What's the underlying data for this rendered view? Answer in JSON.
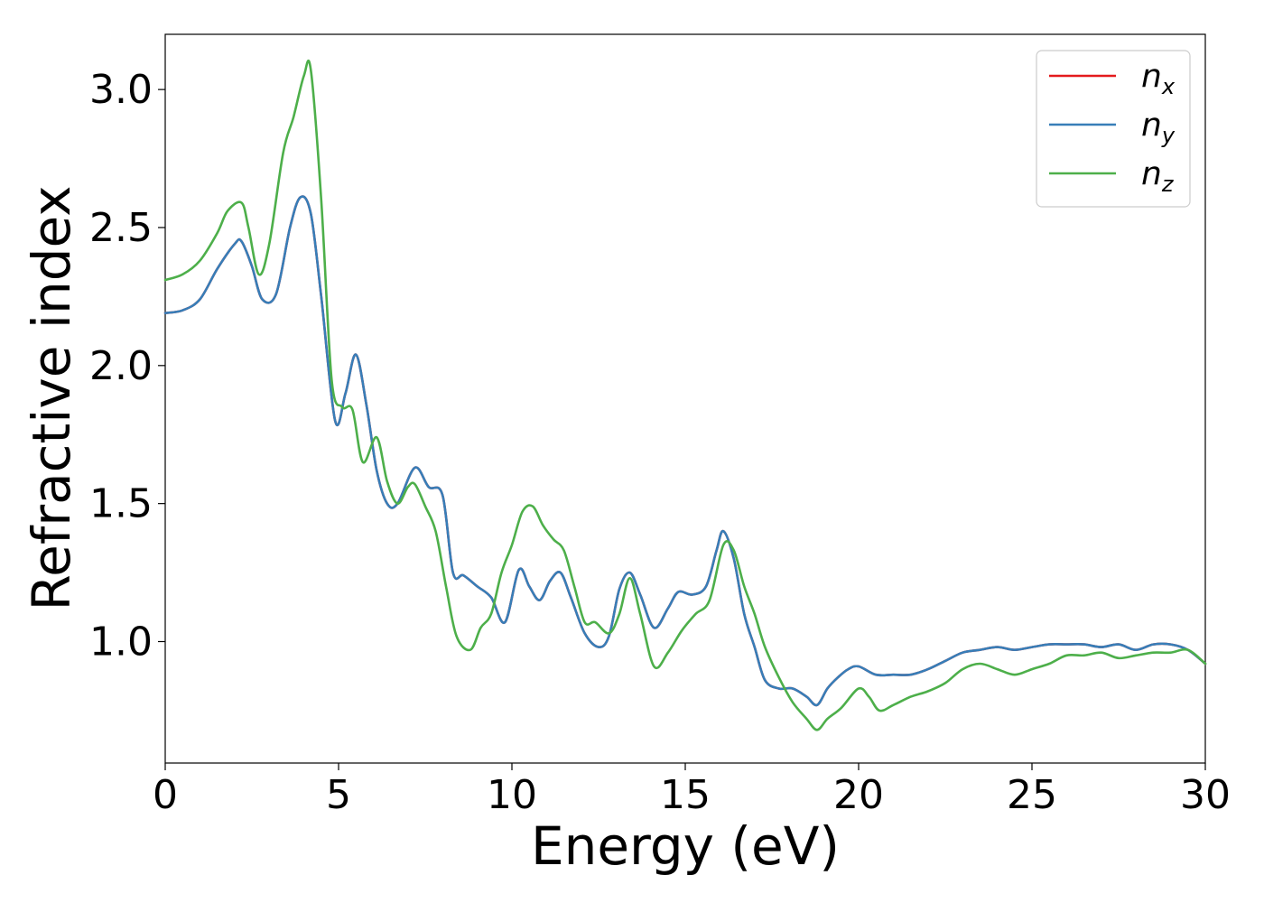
{
  "chart_data": {
    "type": "line",
    "title": "",
    "xlabel": "Energy (eV)",
    "ylabel": "Refractive index",
    "xlim": [
      0,
      30
    ],
    "ylim": [
      0.56,
      3.2
    ],
    "xticks": [
      0,
      5,
      10,
      15,
      20,
      25,
      30
    ],
    "xtick_labels": [
      "0",
      "5",
      "10",
      "15",
      "20",
      "25",
      "30"
    ],
    "yticks": [
      1.0,
      1.5,
      2.0,
      2.5,
      3.0
    ],
    "ytick_labels": [
      "1.0",
      "1.5",
      "2.0",
      "2.5",
      "3.0"
    ],
    "grid": false,
    "legend_position": "top-right",
    "series": [
      {
        "name": "n",
        "subscript": "x",
        "color": "#e41a1c",
        "x": [
          0,
          0.5,
          1,
          1.5,
          2,
          2.2,
          2.5,
          2.8,
          3.2,
          3.6,
          3.9,
          4.2,
          4.5,
          4.9,
          5.2,
          5.5,
          5.8,
          6.1,
          6.4,
          6.7,
          7.2,
          7.6,
          8,
          8.3,
          8.6,
          9,
          9.4,
          9.8,
          10.2,
          10.5,
          10.8,
          11.1,
          11.4,
          11.7,
          12.1,
          12.5,
          12.8,
          13.1,
          13.4,
          13.7,
          14.1,
          14.5,
          14.8,
          15.2,
          15.6,
          15.9,
          16.1,
          16.4,
          16.7,
          17,
          17.3,
          17.7,
          18.1,
          18.5,
          18.8,
          19.1,
          19.4,
          19.7,
          20,
          20.5,
          21,
          21.5,
          22,
          22.5,
          23,
          23.5,
          24,
          24.5,
          25,
          25.5,
          26,
          26.5,
          27,
          27.5,
          28,
          28.5,
          29,
          29.5,
          30
        ],
        "y": [
          2.19,
          2.2,
          2.24,
          2.35,
          2.44,
          2.45,
          2.36,
          2.24,
          2.26,
          2.5,
          2.61,
          2.55,
          2.25,
          1.8,
          1.9,
          2.04,
          1.86,
          1.62,
          1.5,
          1.5,
          1.63,
          1.56,
          1.53,
          1.25,
          1.24,
          1.2,
          1.16,
          1.07,
          1.26,
          1.2,
          1.15,
          1.22,
          1.25,
          1.16,
          1.03,
          0.98,
          1.02,
          1.19,
          1.25,
          1.17,
          1.05,
          1.12,
          1.18,
          1.17,
          1.2,
          1.33,
          1.4,
          1.3,
          1.1,
          0.98,
          0.86,
          0.83,
          0.83,
          0.8,
          0.77,
          0.83,
          0.87,
          0.9,
          0.91,
          0.88,
          0.88,
          0.88,
          0.9,
          0.93,
          0.96,
          0.97,
          0.98,
          0.97,
          0.98,
          0.99,
          0.99,
          0.99,
          0.98,
          0.99,
          0.97,
          0.99,
          0.99,
          0.97,
          0.92
        ]
      },
      {
        "name": "n",
        "subscript": "y",
        "color": "#377eb8",
        "x": [
          0,
          0.5,
          1,
          1.5,
          2,
          2.2,
          2.5,
          2.8,
          3.2,
          3.6,
          3.9,
          4.2,
          4.5,
          4.9,
          5.2,
          5.5,
          5.8,
          6.1,
          6.4,
          6.7,
          7.2,
          7.6,
          8,
          8.3,
          8.6,
          9,
          9.4,
          9.8,
          10.2,
          10.5,
          10.8,
          11.1,
          11.4,
          11.7,
          12.1,
          12.5,
          12.8,
          13.1,
          13.4,
          13.7,
          14.1,
          14.5,
          14.8,
          15.2,
          15.6,
          15.9,
          16.1,
          16.4,
          16.7,
          17,
          17.3,
          17.7,
          18.1,
          18.5,
          18.8,
          19.1,
          19.4,
          19.7,
          20,
          20.5,
          21,
          21.5,
          22,
          22.5,
          23,
          23.5,
          24,
          24.5,
          25,
          25.5,
          26,
          26.5,
          27,
          27.5,
          28,
          28.5,
          29,
          29.5,
          30
        ],
        "y": [
          2.19,
          2.2,
          2.24,
          2.35,
          2.44,
          2.45,
          2.36,
          2.24,
          2.26,
          2.5,
          2.61,
          2.55,
          2.25,
          1.8,
          1.9,
          2.04,
          1.86,
          1.62,
          1.5,
          1.5,
          1.63,
          1.56,
          1.53,
          1.25,
          1.24,
          1.2,
          1.16,
          1.07,
          1.26,
          1.2,
          1.15,
          1.22,
          1.25,
          1.16,
          1.03,
          0.98,
          1.02,
          1.19,
          1.25,
          1.17,
          1.05,
          1.12,
          1.18,
          1.17,
          1.2,
          1.33,
          1.4,
          1.3,
          1.1,
          0.98,
          0.86,
          0.83,
          0.83,
          0.8,
          0.77,
          0.83,
          0.87,
          0.9,
          0.91,
          0.88,
          0.88,
          0.88,
          0.9,
          0.93,
          0.96,
          0.97,
          0.98,
          0.97,
          0.98,
          0.99,
          0.99,
          0.99,
          0.98,
          0.99,
          0.97,
          0.99,
          0.99,
          0.97,
          0.92
        ]
      },
      {
        "name": "n",
        "subscript": "z",
        "color": "#4daf4a",
        "x": [
          0,
          0.5,
          1,
          1.5,
          1.8,
          2.2,
          2.4,
          2.7,
          3,
          3.4,
          3.7,
          4,
          4.2,
          4.5,
          4.8,
          5.1,
          5.4,
          5.7,
          6.1,
          6.4,
          6.7,
          7,
          7.2,
          7.5,
          7.8,
          8.1,
          8.4,
          8.8,
          9.1,
          9.4,
          9.7,
          10,
          10.3,
          10.6,
          10.9,
          11.2,
          11.5,
          11.8,
          12.1,
          12.4,
          12.8,
          13.1,
          13.4,
          13.7,
          14.1,
          14.5,
          14.9,
          15.3,
          15.7,
          16.1,
          16.4,
          16.7,
          17,
          17.3,
          17.7,
          18.1,
          18.5,
          18.8,
          19.1,
          19.5,
          20,
          20.3,
          20.6,
          21,
          21.5,
          22,
          22.5,
          23,
          23.5,
          24,
          24.5,
          25,
          25.5,
          26,
          26.5,
          27,
          27.5,
          28,
          28.5,
          29,
          29.5,
          30
        ],
        "y": [
          2.31,
          2.33,
          2.38,
          2.48,
          2.56,
          2.59,
          2.5,
          2.33,
          2.44,
          2.77,
          2.9,
          3.05,
          3.07,
          2.6,
          1.95,
          1.85,
          1.84,
          1.65,
          1.74,
          1.58,
          1.5,
          1.56,
          1.57,
          1.49,
          1.4,
          1.2,
          1.02,
          0.97,
          1.05,
          1.1,
          1.25,
          1.35,
          1.47,
          1.49,
          1.42,
          1.37,
          1.33,
          1.2,
          1.07,
          1.07,
          1.03,
          1.1,
          1.23,
          1.1,
          0.91,
          0.96,
          1.04,
          1.1,
          1.15,
          1.35,
          1.33,
          1.2,
          1.1,
          0.98,
          0.87,
          0.78,
          0.72,
          0.68,
          0.72,
          0.76,
          0.83,
          0.8,
          0.75,
          0.77,
          0.8,
          0.82,
          0.85,
          0.9,
          0.92,
          0.9,
          0.88,
          0.9,
          0.92,
          0.95,
          0.95,
          0.96,
          0.94,
          0.95,
          0.96,
          0.96,
          0.97,
          0.92
        ]
      }
    ]
  }
}
